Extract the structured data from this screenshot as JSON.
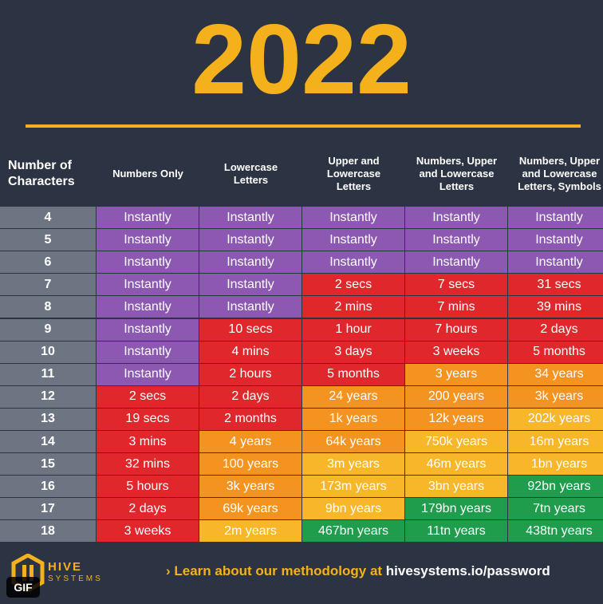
{
  "header": {
    "title": "2022"
  },
  "table": {
    "columns": [
      "Number of\nCharacters",
      "Numbers Only",
      "Lowercase\nLetters",
      "Upper and\nLowercase\nLetters",
      "Numbers, Upper\nand Lowercase\nLetters",
      "Numbers, Upper\nand Lowercase\nLetters, Symbols"
    ],
    "rows": [
      [
        4,
        "Instantly",
        "Instantly",
        "Instantly",
        "Instantly",
        "Instantly"
      ],
      [
        5,
        "Instantly",
        "Instantly",
        "Instantly",
        "Instantly",
        "Instantly"
      ],
      [
        6,
        "Instantly",
        "Instantly",
        "Instantly",
        "Instantly",
        "Instantly"
      ],
      [
        7,
        "Instantly",
        "Instantly",
        "2 secs",
        "7 secs",
        "31 secs"
      ],
      [
        8,
        "Instantly",
        "Instantly",
        "2 mins",
        "7 mins",
        "39 mins"
      ],
      [
        9,
        "Instantly",
        "10 secs",
        "1 hour",
        "7 hours",
        "2 days"
      ],
      [
        10,
        "Instantly",
        "4 mins",
        "3 days",
        "3 weeks",
        "5 months"
      ],
      [
        11,
        "Instantly",
        "2 hours",
        "5 months",
        "3 years",
        "34 years"
      ],
      [
        12,
        "2 secs",
        "2 days",
        "24 years",
        "200 years",
        "3k years"
      ],
      [
        13,
        "19 secs",
        "2 months",
        "1k years",
        "12k years",
        "202k years"
      ],
      [
        14,
        "3 mins",
        "4 years",
        "64k years",
        "750k years",
        "16m years"
      ],
      [
        15,
        "32 mins",
        "100 years",
        "3m years",
        "46m years",
        "1bn years"
      ],
      [
        16,
        "5 hours",
        "3k years",
        "173m years",
        "3bn years",
        "92bn years"
      ],
      [
        17,
        "2 days",
        "69k years",
        "9bn years",
        "179bn years",
        "7tn years"
      ],
      [
        18,
        "3 weeks",
        "2m years",
        "467bn years",
        "11tn years",
        "438tn years"
      ]
    ],
    "cell_colors": [
      [
        "#8c58b1",
        "#8c58b1",
        "#8c58b1",
        "#8c58b1",
        "#8c58b1"
      ],
      [
        "#8c58b1",
        "#8c58b1",
        "#8c58b1",
        "#8c58b1",
        "#8c58b1"
      ],
      [
        "#8c58b1",
        "#8c58b1",
        "#8c58b1",
        "#8c58b1",
        "#8c58b1"
      ],
      [
        "#8c58b1",
        "#8c58b1",
        "#e0282c",
        "#e0282c",
        "#e0282c"
      ],
      [
        "#8c58b1",
        "#8c58b1",
        "#e0282c",
        "#e0282c",
        "#e0282c"
      ],
      [
        "#8c58b1",
        "#e0282c",
        "#e0282c",
        "#e0282c",
        "#e0282c"
      ],
      [
        "#8c58b1",
        "#e0282c",
        "#e0282c",
        "#e0282c",
        "#e0282c"
      ],
      [
        "#8c58b1",
        "#e0282c",
        "#e0282c",
        "#f4931f",
        "#f4931f"
      ],
      [
        "#e0282c",
        "#e0282c",
        "#f4931f",
        "#f4931f",
        "#f4931f"
      ],
      [
        "#e0282c",
        "#e0282c",
        "#f4931f",
        "#f4931f",
        "#f8b62a"
      ],
      [
        "#e0282c",
        "#f4931f",
        "#f4931f",
        "#f8b62a",
        "#f8b62a"
      ],
      [
        "#e0282c",
        "#f4931f",
        "#f8b62a",
        "#f8b62a",
        "#f8b62a"
      ],
      [
        "#e0282c",
        "#f4931f",
        "#f8b62a",
        "#f8b62a",
        "#1f9d4c"
      ],
      [
        "#e0282c",
        "#f4931f",
        "#f8b62a",
        "#1f9d4c",
        "#1f9d4c"
      ],
      [
        "#e0282c",
        "#f8b62a",
        "#1f9d4c",
        "#1f9d4c",
        "#1f9d4c"
      ]
    ]
  },
  "footer": {
    "brand": "HIVE",
    "brand_sub": "SYSTEMS",
    "cta": "Learn about our methodology at",
    "link": "hivesystems.io/password"
  },
  "badge": "GIF"
}
